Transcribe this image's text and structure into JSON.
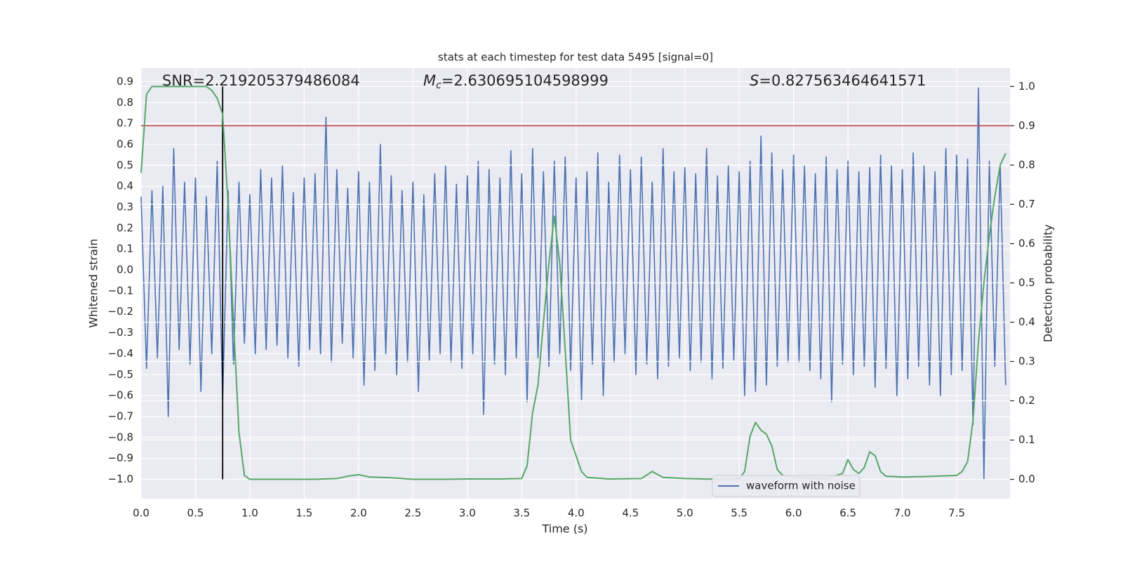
{
  "chart_data": {
    "type": "line",
    "title": "stats at each timestep for test data 5495 [signal=0]",
    "xlabel": "Time (s)",
    "ylabel": "Whitened strain",
    "y2label": "Detection probability",
    "xlim": [
      0,
      7.99
    ],
    "ylim": [
      -1.092,
      0.965
    ],
    "y2lim": [
      -0.049,
      1.047
    ],
    "xticks": [
      {
        "value": 0,
        "label": "0.0"
      },
      0.5,
      {
        "value": 1,
        "label": "1.0"
      },
      1.5,
      {
        "value": 2,
        "label": "2.0"
      },
      2.5,
      {
        "value": 3,
        "label": "3.0"
      },
      3.5,
      {
        "value": 4,
        "label": "4.0"
      },
      4.5,
      {
        "value": 5,
        "label": "5.0"
      },
      5.5,
      {
        "value": 6,
        "label": "6.0"
      },
      6.5,
      {
        "value": 7,
        "label": "7.0"
      },
      7.5
    ],
    "yticks": [
      {
        "value": -1.0,
        "label": "−1.0"
      },
      {
        "value": -0.9,
        "label": "−0.9"
      },
      {
        "value": -0.8,
        "label": "−0.8"
      },
      {
        "value": -0.7,
        "label": "−0.7"
      },
      {
        "value": -0.6,
        "label": "−0.6"
      },
      {
        "value": -0.5,
        "label": "−0.5"
      },
      {
        "value": -0.4,
        "label": "−0.4"
      },
      {
        "value": -0.3,
        "label": "−0.3"
      },
      {
        "value": -0.2,
        "label": "−0.2"
      },
      {
        "value": -0.1,
        "label": "−0.1"
      },
      {
        "value": 0,
        "label": "0.0"
      },
      0.1,
      0.2,
      0.3,
      0.4,
      0.5,
      0.6,
      0.7,
      0.8,
      0.9
    ],
    "y2ticks": [
      {
        "value": 0,
        "label": "0.0"
      },
      0.1,
      0.2,
      0.3,
      0.4,
      0.5,
      0.6,
      0.7,
      0.8,
      0.9,
      {
        "value": 1,
        "label": "1.0"
      }
    ],
    "grid": true,
    "legend": "lower right",
    "series": [
      {
        "name": "waveform with noise",
        "color": "#4c72b0",
        "axis": "y",
        "x": [
          0,
          0.05,
          0.1,
          0.15,
          0.2,
          0.25,
          0.3,
          0.35,
          0.4,
          0.45,
          0.5,
          0.55,
          0.6,
          0.65,
          0.7,
          0.75,
          0.8,
          0.85,
          0.9,
          0.95,
          1,
          1.05,
          1.1,
          1.15,
          1.2,
          1.25,
          1.3,
          1.35,
          1.4,
          1.45,
          1.5,
          1.55,
          1.6,
          1.65,
          1.7,
          1.75,
          1.8,
          1.85,
          1.9,
          1.95,
          2,
          2.05,
          2.1,
          2.15,
          2.2,
          2.25,
          2.3,
          2.35,
          2.4,
          2.45,
          2.5,
          2.55,
          2.6,
          2.65,
          2.7,
          2.75,
          2.8,
          2.85,
          2.9,
          2.95,
          3,
          3.05,
          3.1,
          3.15,
          3.2,
          3.25,
          3.3,
          3.35,
          3.4,
          3.45,
          3.5,
          3.55,
          3.6,
          3.65,
          3.7,
          3.75,
          3.8,
          3.85,
          3.9,
          3.95,
          4,
          4.05,
          4.1,
          4.15,
          4.2,
          4.25,
          4.3,
          4.35,
          4.4,
          4.45,
          4.5,
          4.55,
          4.6,
          4.65,
          4.7,
          4.75,
          4.8,
          4.85,
          4.9,
          4.95,
          5,
          5.05,
          5.1,
          5.15,
          5.2,
          5.25,
          5.3,
          5.35,
          5.4,
          5.45,
          5.5,
          5.55,
          5.6,
          5.65,
          5.7,
          5.75,
          5.8,
          5.85,
          5.9,
          5.95,
          6,
          6.05,
          6.1,
          6.15,
          6.2,
          6.25,
          6.3,
          6.35,
          6.4,
          6.45,
          6.5,
          6.55,
          6.6,
          6.65,
          6.7,
          6.75,
          6.8,
          6.85,
          6.9,
          6.95,
          7,
          7.05,
          7.1,
          7.15,
          7.2,
          7.25,
          7.3,
          7.35,
          7.4,
          7.45,
          7.5,
          7.55,
          7.6,
          7.65,
          7.7,
          7.75,
          7.8,
          7.85,
          7.9,
          7.95
        ],
        "values": [
          0.35,
          -0.47,
          0.38,
          -0.42,
          0.4,
          -0.7,
          0.58,
          -0.38,
          0.42,
          -0.45,
          0.44,
          -0.58,
          0.35,
          -0.4,
          0.52,
          -0.62,
          0.38,
          -0.45,
          0.42,
          -0.35,
          0.36,
          -0.4,
          0.48,
          -0.38,
          0.44,
          -0.36,
          0.5,
          -0.42,
          0.37,
          -0.46,
          0.44,
          -0.38,
          0.46,
          -0.4,
          0.73,
          -0.44,
          0.48,
          -0.35,
          0.39,
          -0.42,
          0.47,
          -0.55,
          0.42,
          -0.48,
          0.6,
          -0.4,
          0.45,
          -0.5,
          0.38,
          -0.44,
          0.42,
          -0.58,
          0.36,
          -0.43,
          0.46,
          -0.4,
          0.5,
          -0.44,
          0.41,
          -0.47,
          0.45,
          -0.4,
          0.52,
          -0.69,
          0.48,
          -0.45,
          0.44,
          -0.5,
          0.57,
          -0.42,
          0.46,
          -0.63,
          0.58,
          -0.42,
          0.47,
          -0.46,
          0.52,
          -0.4,
          0.54,
          -0.48,
          0.44,
          -0.62,
          0.47,
          -0.45,
          0.56,
          -0.6,
          0.42,
          -0.44,
          0.55,
          -0.4,
          0.48,
          -0.5,
          0.54,
          -0.45,
          0.42,
          -0.52,
          0.58,
          -0.46,
          0.47,
          -0.42,
          0.49,
          -0.48,
          0.46,
          -0.44,
          0.58,
          -0.52,
          0.45,
          -0.47,
          0.5,
          -0.43,
          0.47,
          -0.6,
          0.52,
          -0.58,
          0.64,
          -0.55,
          0.56,
          -0.46,
          0.48,
          -0.44,
          0.55,
          -0.44,
          0.5,
          -0.48,
          0.46,
          -0.52,
          0.54,
          -0.63,
          0.48,
          -0.45,
          0.52,
          -0.5,
          0.47,
          -0.46,
          0.49,
          -0.56,
          0.55,
          -0.47,
          0.5,
          -0.6,
          0.48,
          -0.52,
          0.56,
          -0.46,
          0.5,
          -0.55,
          0.47,
          -0.6,
          0.58,
          -0.5,
          0.55,
          -0.48,
          0.53,
          -0.74,
          0.87,
          -1.0,
          0.52,
          -0.46,
          0.5,
          -0.55
        ]
      },
      {
        "color": "#55a868",
        "axis": "y2",
        "x": [
          0,
          0.05,
          0.1,
          0.2,
          0.3,
          0.4,
          0.5,
          0.6,
          0.65,
          0.7,
          0.75,
          0.8,
          0.85,
          0.9,
          0.95,
          1.0,
          1.2,
          1.4,
          1.6,
          1.8,
          1.9,
          2.0,
          2.1,
          2.3,
          2.5,
          2.8,
          3.0,
          3.3,
          3.5,
          3.55,
          3.6,
          3.65,
          3.7,
          3.75,
          3.8,
          3.85,
          3.9,
          3.95,
          4.0,
          4.05,
          4.1,
          4.3,
          4.6,
          4.7,
          4.8,
          5.0,
          5.3,
          5.5,
          5.55,
          5.6,
          5.65,
          5.7,
          5.75,
          5.8,
          5.85,
          5.9,
          6.0,
          6.3,
          6.45,
          6.5,
          6.55,
          6.6,
          6.65,
          6.7,
          6.75,
          6.8,
          6.85,
          7.0,
          7.2,
          7.5,
          7.55,
          7.6,
          7.65,
          7.7,
          7.75,
          7.8,
          7.85,
          7.9,
          7.95
        ],
        "values": [
          0.78,
          0.98,
          1.0,
          1.0,
          1.0,
          1.0,
          1.0,
          1.0,
          0.99,
          0.97,
          0.93,
          0.7,
          0.4,
          0.12,
          0.01,
          0.0,
          0.0,
          0.0,
          0.0,
          0.002,
          0.008,
          0.012,
          0.006,
          0.004,
          0.0,
          0.0,
          0.001,
          0.001,
          0.002,
          0.035,
          0.17,
          0.24,
          0.4,
          0.55,
          0.67,
          0.55,
          0.33,
          0.1,
          0.06,
          0.02,
          0.005,
          0.001,
          0.002,
          0.02,
          0.005,
          0.002,
          0.0,
          0.002,
          0.02,
          0.11,
          0.145,
          0.125,
          0.115,
          0.085,
          0.025,
          0.01,
          0.005,
          0.002,
          0.015,
          0.05,
          0.025,
          0.015,
          0.03,
          0.07,
          0.06,
          0.02,
          0.008,
          0.006,
          0.007,
          0.01,
          0.02,
          0.045,
          0.15,
          0.35,
          0.5,
          0.62,
          0.72,
          0.8,
          0.83
        ]
      }
    ],
    "hlines": [
      {
        "y": 0.9,
        "axis": "y2",
        "color": "#c44e52"
      }
    ],
    "vlines": [
      {
        "x": 0.75,
        "ymin": 0,
        "ymax": 1.0,
        "axis": "y2",
        "color": "#000000"
      }
    ],
    "annotations": [
      {
        "text": "SNR=2.219205379486084"
      },
      {
        "symbol": "M",
        "subscript": "c",
        "text": "=2.630695104598999"
      },
      {
        "symbol": "S",
        "text": "=0.827563464641571"
      }
    ]
  }
}
